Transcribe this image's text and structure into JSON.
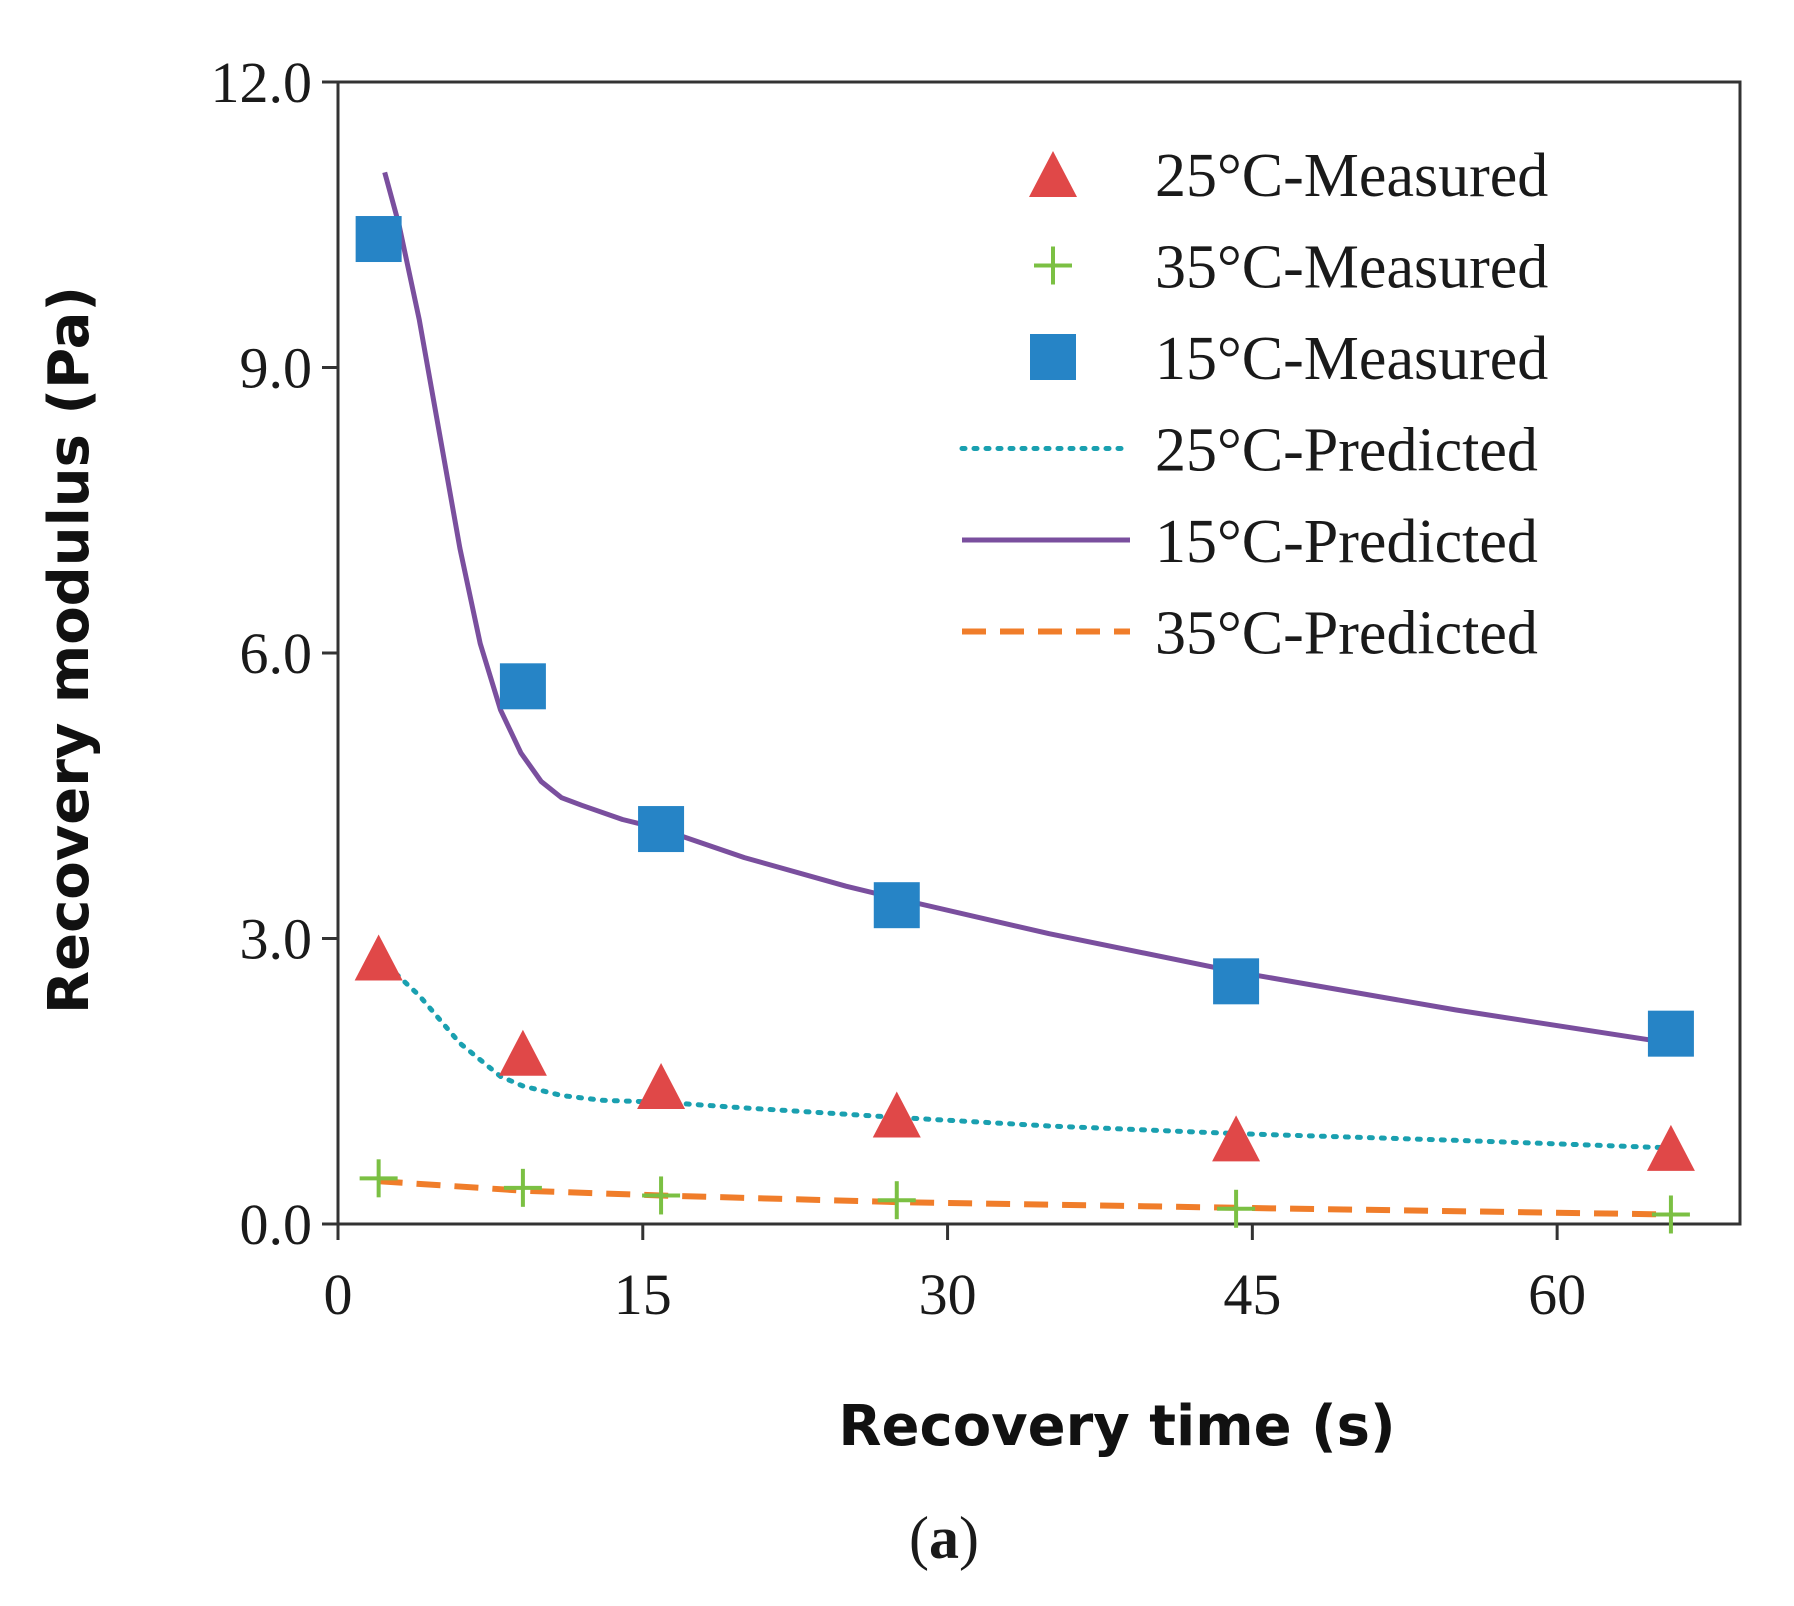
{
  "chart_data": {
    "type": "scatter",
    "title": "",
    "xlabel": "Recovery time (s)",
    "ylabel": "Recovery modulus (Pa)",
    "xlim": [
      0,
      69
    ],
    "ylim": [
      0,
      12
    ],
    "xticks": [
      0,
      15,
      30,
      45,
      60
    ],
    "xtick_labels": [
      "0",
      "15",
      "30",
      "45",
      "60"
    ],
    "yticks": [
      0,
      3,
      6,
      9,
      12
    ],
    "ytick_labels": [
      "0.0",
      "3.0",
      "6.0",
      "9.0",
      "12.0"
    ],
    "grid": false,
    "legend_position": "top-right",
    "caption_letter": "a",
    "caption_open": "(",
    "caption_close": ")",
    "series": [
      {
        "name": "25°C-Measured",
        "kind": "scatter",
        "marker": "triangle",
        "color": "#e04848",
        "x": [
          2,
          9.1,
          15.9,
          27.5,
          44.2,
          65.6
        ],
        "y": [
          2.8,
          1.8,
          1.45,
          1.15,
          0.9,
          0.8
        ]
      },
      {
        "name": "35°C-Measured",
        "kind": "scatter",
        "marker": "plus",
        "color": "#7bc043",
        "x": [
          2,
          9.1,
          15.9,
          27.5,
          44.2,
          65.6
        ],
        "y": [
          0.48,
          0.38,
          0.3,
          0.25,
          0.16,
          0.1
        ]
      },
      {
        "name": "15°C-Measured",
        "kind": "scatter",
        "marker": "square",
        "color": "#2684c6",
        "x": [
          2,
          9.1,
          15.9,
          27.5,
          44.2,
          65.6
        ],
        "y": [
          10.35,
          5.65,
          4.15,
          3.35,
          2.55,
          2.0
        ]
      },
      {
        "name": "25°C-Predicted",
        "kind": "line",
        "style": "dotted",
        "color": "#1aa0b0",
        "x": [
          2,
          4,
          6,
          8,
          9.1,
          11,
          13,
          15.9,
          20,
          27.5,
          35,
          44.2,
          55,
          65.6
        ],
        "y": [
          2.8,
          2.4,
          1.9,
          1.55,
          1.45,
          1.35,
          1.3,
          1.28,
          1.22,
          1.12,
          1.03,
          0.95,
          0.88,
          0.8
        ]
      },
      {
        "name": "15°C-Predicted",
        "kind": "line",
        "style": "solid",
        "color": "#7a4f9e",
        "x": [
          2.3,
          3,
          4,
          5,
          6,
          7,
          8,
          9,
          10,
          11,
          12,
          14,
          15.9,
          20,
          25,
          27.5,
          35,
          44.2,
          55,
          65.6
        ],
        "y": [
          11.05,
          10.5,
          9.5,
          8.3,
          7.1,
          6.1,
          5.4,
          4.95,
          4.65,
          4.48,
          4.4,
          4.25,
          4.15,
          3.85,
          3.55,
          3.42,
          3.05,
          2.65,
          2.25,
          1.9
        ]
      },
      {
        "name": "35°C-Predicted",
        "kind": "line",
        "style": "dashed",
        "color": "#f07d2a",
        "x": [
          2,
          9.1,
          15.9,
          27.5,
          44.2,
          65.6
        ],
        "y": [
          0.45,
          0.35,
          0.3,
          0.23,
          0.17,
          0.1
        ]
      }
    ]
  }
}
